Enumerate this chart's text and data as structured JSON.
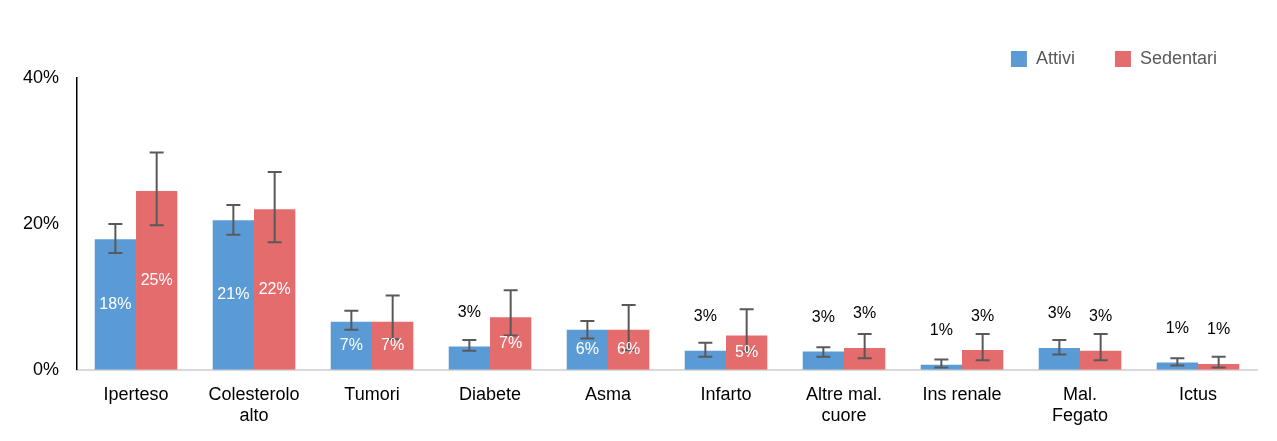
{
  "chart_data": {
    "type": "bar",
    "categories": [
      "Iperteso",
      "Colesterolo alto",
      "Tumori",
      "Diabete",
      "Asma",
      "Infarto",
      "Altre mal. cuore",
      "Ins renale",
      "Mal. Fegato",
      "Ictus"
    ],
    "series": [
      {
        "name": "Attivi",
        "color": "#5b9bd5",
        "values": [
          17.9,
          20.5,
          6.6,
          3.2,
          5.5,
          2.6,
          2.5,
          0.7,
          3.0,
          1.0
        ],
        "errors": [
          [
            16,
            20
          ],
          [
            18.5,
            22.6
          ],
          [
            5.5,
            8.1
          ],
          [
            2.6,
            4.1
          ],
          [
            4.3,
            6.7
          ],
          [
            1.8,
            3.7
          ],
          [
            1.8,
            3.1
          ],
          [
            0.3,
            1.4
          ],
          [
            2.1,
            4.1
          ],
          [
            0.6,
            1.6
          ]
        ],
        "value_labels": [
          "18%",
          "21%",
          "7%",
          "3%",
          "6%",
          "3%",
          "3%",
          "1%",
          "3%",
          "1%"
        ]
      },
      {
        "name": "Sedentari",
        "color": "#e46c6c",
        "values": [
          24.5,
          22,
          6.6,
          7.2,
          5.5,
          4.7,
          3.0,
          2.7,
          2.6,
          0.8
        ],
        "errors": [
          [
            19.8,
            29.8
          ],
          [
            17.5,
            27.1
          ],
          [
            4.2,
            10.2
          ],
          [
            4.7,
            10.9
          ],
          [
            2.7,
            8.9
          ],
          [
            2.5,
            8.3
          ],
          [
            1.6,
            4.9
          ],
          [
            1.3,
            4.9
          ],
          [
            1.3,
            4.9
          ],
          [
            0.3,
            1.8
          ]
        ],
        "value_labels": [
          "25%",
          "22%",
          "7%",
          "7%",
          "6%",
          "5%",
          "3%",
          "3%",
          "3%",
          "1%"
        ]
      }
    ],
    "ylim": [
      0,
      40
    ],
    "yticks": [
      {
        "value": 0,
        "label": "0%"
      },
      {
        "value": 20,
        "label": "20%"
      },
      {
        "value": 40,
        "label": "40%"
      }
    ],
    "grid": false,
    "legend": "top right"
  }
}
